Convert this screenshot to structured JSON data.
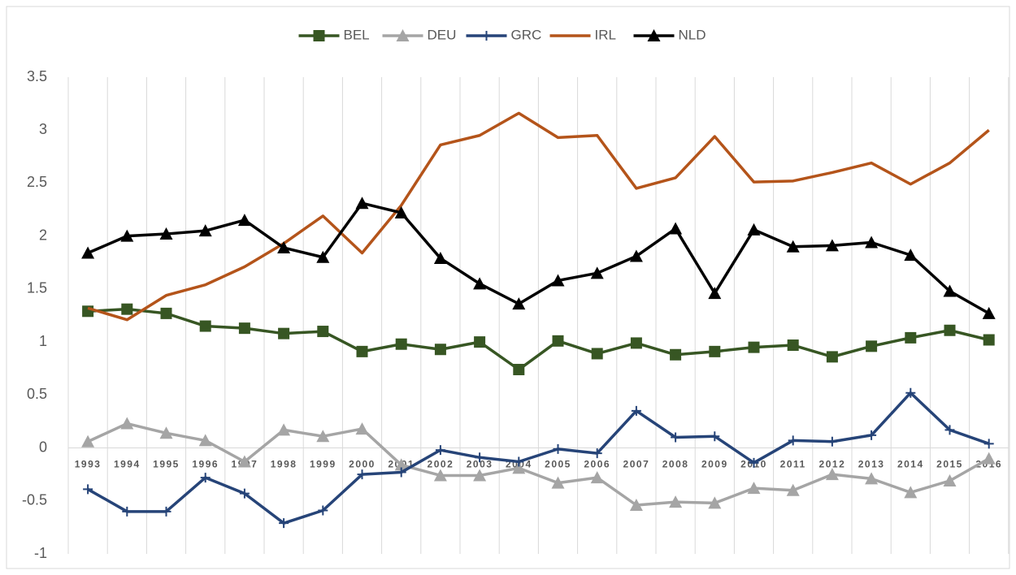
{
  "chart_data": {
    "type": "line",
    "categories": [
      "1993",
      "1994",
      "1995",
      "1996",
      "1997",
      "1998",
      "1999",
      "2000",
      "2001",
      "2002",
      "2003",
      "2004",
      "2005",
      "2006",
      "2007",
      "2008",
      "2009",
      "2010",
      "2011",
      "2012",
      "2013",
      "2014",
      "2015",
      "2016"
    ],
    "ylim": [
      -1,
      3.5
    ],
    "yticks": [
      -1,
      -0.5,
      0,
      0.5,
      1,
      1.5,
      2,
      2.5,
      3,
      3.5
    ],
    "grid": true,
    "legend": "top",
    "series": [
      {
        "name": "BEL",
        "color": "#375623",
        "marker": "square",
        "values": [
          1.29,
          1.31,
          1.27,
          1.15,
          1.13,
          1.08,
          1.1,
          0.91,
          0.98,
          0.93,
          1.0,
          0.74,
          1.01,
          0.89,
          0.99,
          0.88,
          0.91,
          0.95,
          0.97,
          0.86,
          0.96,
          1.04,
          1.11,
          1.02
        ]
      },
      {
        "name": "DEU",
        "color": "#a5a5a5",
        "marker": "triangle",
        "values": [
          0.06,
          0.23,
          0.14,
          0.07,
          -0.13,
          0.17,
          0.11,
          0.18,
          -0.16,
          -0.26,
          -0.26,
          -0.19,
          -0.33,
          -0.28,
          -0.54,
          -0.51,
          -0.52,
          -0.38,
          -0.4,
          -0.25,
          -0.29,
          -0.42,
          -0.31,
          -0.1
        ]
      },
      {
        "name": "GRC",
        "color": "#264478",
        "marker": "plus",
        "values": [
          -0.39,
          -0.6,
          -0.6,
          -0.28,
          -0.43,
          -0.71,
          -0.59,
          -0.25,
          -0.23,
          -0.02,
          -0.09,
          -0.13,
          -0.01,
          -0.05,
          0.35,
          0.1,
          0.11,
          -0.14,
          0.07,
          0.06,
          0.12,
          0.52,
          0.17,
          0.04
        ]
      },
      {
        "name": "IRL",
        "color": "#b4541a",
        "marker": "none",
        "values": [
          1.32,
          1.21,
          1.44,
          1.54,
          1.71,
          1.93,
          2.19,
          1.84,
          2.29,
          2.86,
          2.95,
          3.16,
          2.93,
          2.95,
          2.45,
          2.55,
          2.94,
          2.51,
          2.52,
          2.6,
          2.69,
          2.49,
          2.69,
          3.0
        ]
      },
      {
        "name": "NLD",
        "color": "#000000",
        "marker": "triangle",
        "values": [
          1.84,
          2.0,
          2.02,
          2.05,
          2.15,
          1.89,
          1.8,
          2.31,
          2.22,
          1.79,
          1.55,
          1.36,
          1.58,
          1.65,
          1.81,
          2.07,
          1.46,
          2.06,
          1.9,
          1.91,
          1.94,
          1.82,
          1.48,
          1.27
        ]
      }
    ]
  }
}
